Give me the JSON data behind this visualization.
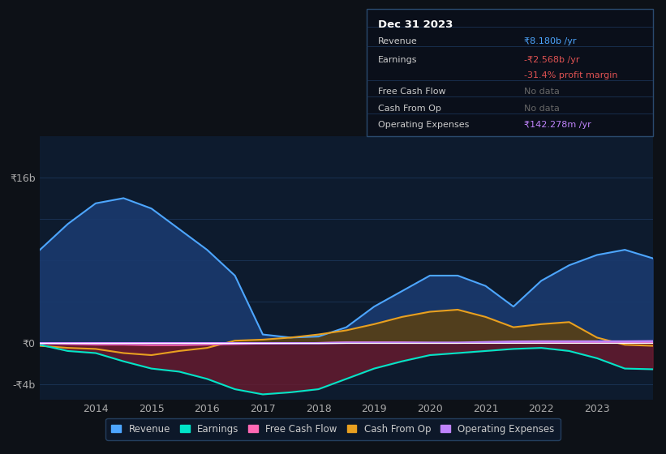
{
  "background_color": "#0d1117",
  "chart_bg": "#0d1b2e",
  "grid_color": "#1e3a5f",
  "zero_line_color": "#ffffff",
  "ylim": [
    -5500000000,
    20000000000
  ],
  "years": [
    2013.0,
    2013.5,
    2014.0,
    2014.5,
    2015.0,
    2015.5,
    2016.0,
    2016.5,
    2017.0,
    2017.5,
    2018.0,
    2018.5,
    2019.0,
    2019.5,
    2020.0,
    2020.5,
    2021.0,
    2021.5,
    2022.0,
    2022.5,
    2023.0,
    2023.5,
    2024.0
  ],
  "revenue": [
    9000000000,
    11500000000,
    13500000000,
    14000000000,
    13000000000,
    11000000000,
    9000000000,
    6500000000,
    800000000,
    500000000,
    600000000,
    1500000000,
    3500000000,
    5000000000,
    6500000000,
    6500000000,
    5500000000,
    3500000000,
    6000000000,
    7500000000,
    8500000000,
    9000000000,
    8180000000
  ],
  "earnings": [
    -200000000,
    -800000000,
    -1000000000,
    -1800000000,
    -2500000000,
    -2800000000,
    -3500000000,
    -4500000000,
    -5000000000,
    -4800000000,
    -4500000000,
    -3500000000,
    -2500000000,
    -1800000000,
    -1200000000,
    -1000000000,
    -800000000,
    -600000000,
    -500000000,
    -800000000,
    -1500000000,
    -2500000000,
    -2568000000
  ],
  "free_cash_flow": [
    -100000000,
    -150000000,
    -200000000,
    -200000000,
    -250000000,
    -250000000,
    -200000000,
    -150000000,
    -100000000,
    -50000000,
    0,
    50000000,
    50000000,
    50000000,
    0,
    0,
    0,
    0,
    0,
    0,
    0,
    0,
    0
  ],
  "cash_from_op": [
    -300000000,
    -500000000,
    -600000000,
    -1000000000,
    -1200000000,
    -800000000,
    -500000000,
    200000000,
    300000000,
    500000000,
    800000000,
    1200000000,
    1800000000,
    2500000000,
    3000000000,
    3200000000,
    2500000000,
    1500000000,
    1800000000,
    2000000000,
    500000000,
    -200000000,
    -300000000
  ],
  "op_expenses": [
    -50000000,
    -50000000,
    -50000000,
    -50000000,
    -50000000,
    -50000000,
    -50000000,
    -50000000,
    -50000000,
    -50000000,
    -50000000,
    0,
    0,
    0,
    0,
    0,
    50000000,
    100000000,
    120000000,
    120000000,
    120000000,
    120000000,
    142280000
  ],
  "revenue_color": "#4da6ff",
  "revenue_fill": "#1a3a6e",
  "earnings_color": "#00e5c8",
  "cash_from_op_color": "#e8a020",
  "free_cash_flow_color": "#ff69b4",
  "op_expenses_color": "#c084fc",
  "legend_items": [
    "Revenue",
    "Earnings",
    "Free Cash Flow",
    "Cash From Op",
    "Operating Expenses"
  ],
  "legend_colors": [
    "#4da6ff",
    "#00e5c8",
    "#ff69b4",
    "#e8a020",
    "#c084fc"
  ],
  "xtick_years": [
    2014,
    2015,
    2016,
    2017,
    2018,
    2019,
    2020,
    2021,
    2022,
    2023
  ],
  "ytick_values": [
    -4000000000,
    0,
    16000000000
  ],
  "ytick_labels": [
    "-₹4b",
    "₹0",
    "₹16b"
  ],
  "info_date": "Dec 31 2023",
  "info_rows": [
    {
      "label": "Revenue",
      "value": "₹8.180b /yr",
      "value_color": "#4da6ff"
    },
    {
      "label": "Earnings",
      "value": "-₹2.568b /yr",
      "value_color": "#e05252"
    },
    {
      "label": "",
      "value": "-31.4% profit margin",
      "value_color": "#e05252"
    },
    {
      "label": "Free Cash Flow",
      "value": "No data",
      "value_color": "#666666"
    },
    {
      "label": "Cash From Op",
      "value": "No data",
      "value_color": "#666666"
    },
    {
      "label": "Operating Expenses",
      "value": "₹142.278m /yr",
      "value_color": "#c084fc"
    }
  ]
}
